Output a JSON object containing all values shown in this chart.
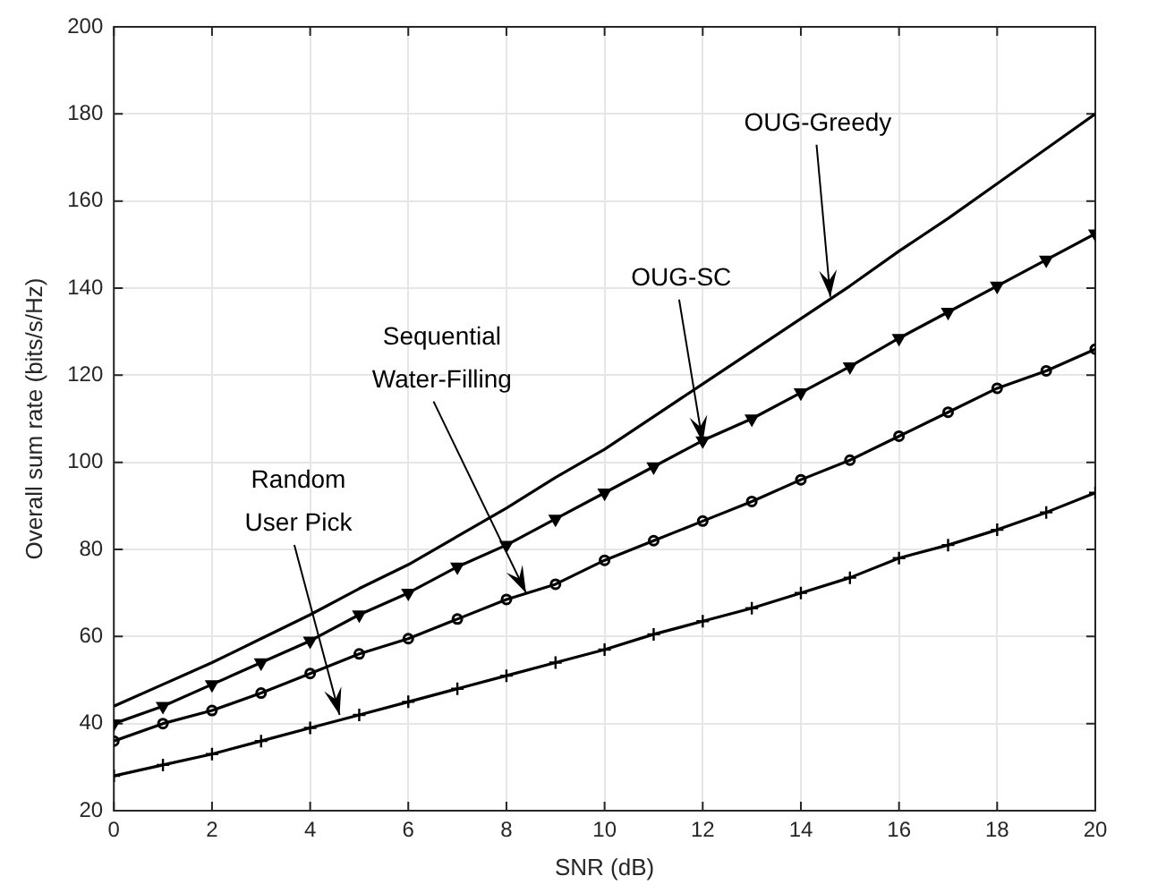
{
  "chart_data": {
    "type": "line",
    "xlabel": "SNR (dB)",
    "ylabel": "Overall sum rate (bits/s/Hz)",
    "x": [
      0,
      1,
      2,
      3,
      4,
      5,
      6,
      7,
      8,
      9,
      10,
      11,
      12,
      13,
      14,
      15,
      16,
      17,
      18,
      19,
      20
    ],
    "series": [
      {
        "color": "#000000",
        "marker": "none",
        "values": [
          44,
          49,
          54,
          59.5,
          65,
          71,
          76.5,
          83,
          89.5,
          96.5,
          103,
          110.5,
          118,
          125.5,
          133,
          140.5,
          148.5,
          156,
          164,
          172,
          180
        ]
      },
      {
        "color": "#000000",
        "marker": "triangle",
        "values": [
          40,
          44,
          49,
          54,
          59,
          65,
          70,
          76,
          81,
          87,
          93,
          99,
          105,
          110,
          116,
          122,
          128.5,
          134.5,
          140.5,
          146.5,
          152.5
        ]
      },
      {
        "color": "#000000",
        "marker": "circle",
        "values": [
          36,
          40,
          43,
          47,
          51.5,
          56,
          59.5,
          64,
          68.5,
          72,
          77.5,
          82,
          86.5,
          91,
          96,
          100.5,
          106,
          111.5,
          117,
          121,
          126
        ]
      },
      {
        "color": "#000000",
        "marker": "cross",
        "values": [
          28,
          30.5,
          33,
          36,
          39,
          42,
          45,
          48,
          51,
          54,
          57,
          60.5,
          63.5,
          66.5,
          70,
          73.5,
          78,
          81,
          84.5,
          88.5,
          93
        ]
      }
    ],
    "xlim": [
      0,
      20
    ],
    "xticks": [
      0,
      2,
      4,
      6,
      8,
      10,
      12,
      14,
      16,
      18,
      20
    ],
    "ylim": [
      20,
      200
    ],
    "yticks": [
      20,
      40,
      60,
      80,
      100,
      120,
      140,
      160,
      180,
      200
    ],
    "grid": true,
    "legend": false,
    "annotations": [
      {
        "text": "OUG-Greedy",
        "x": 14.6,
        "y": 138
      },
      {
        "text": "OUG-SC",
        "x": 12,
        "y": 104.5
      },
      {
        "text": "Sequential\nWater-Filling",
        "x": 8.4,
        "y": 70
      },
      {
        "text": "Random\nUser Pick",
        "x": 4.6,
        "y": 42
      }
    ]
  }
}
